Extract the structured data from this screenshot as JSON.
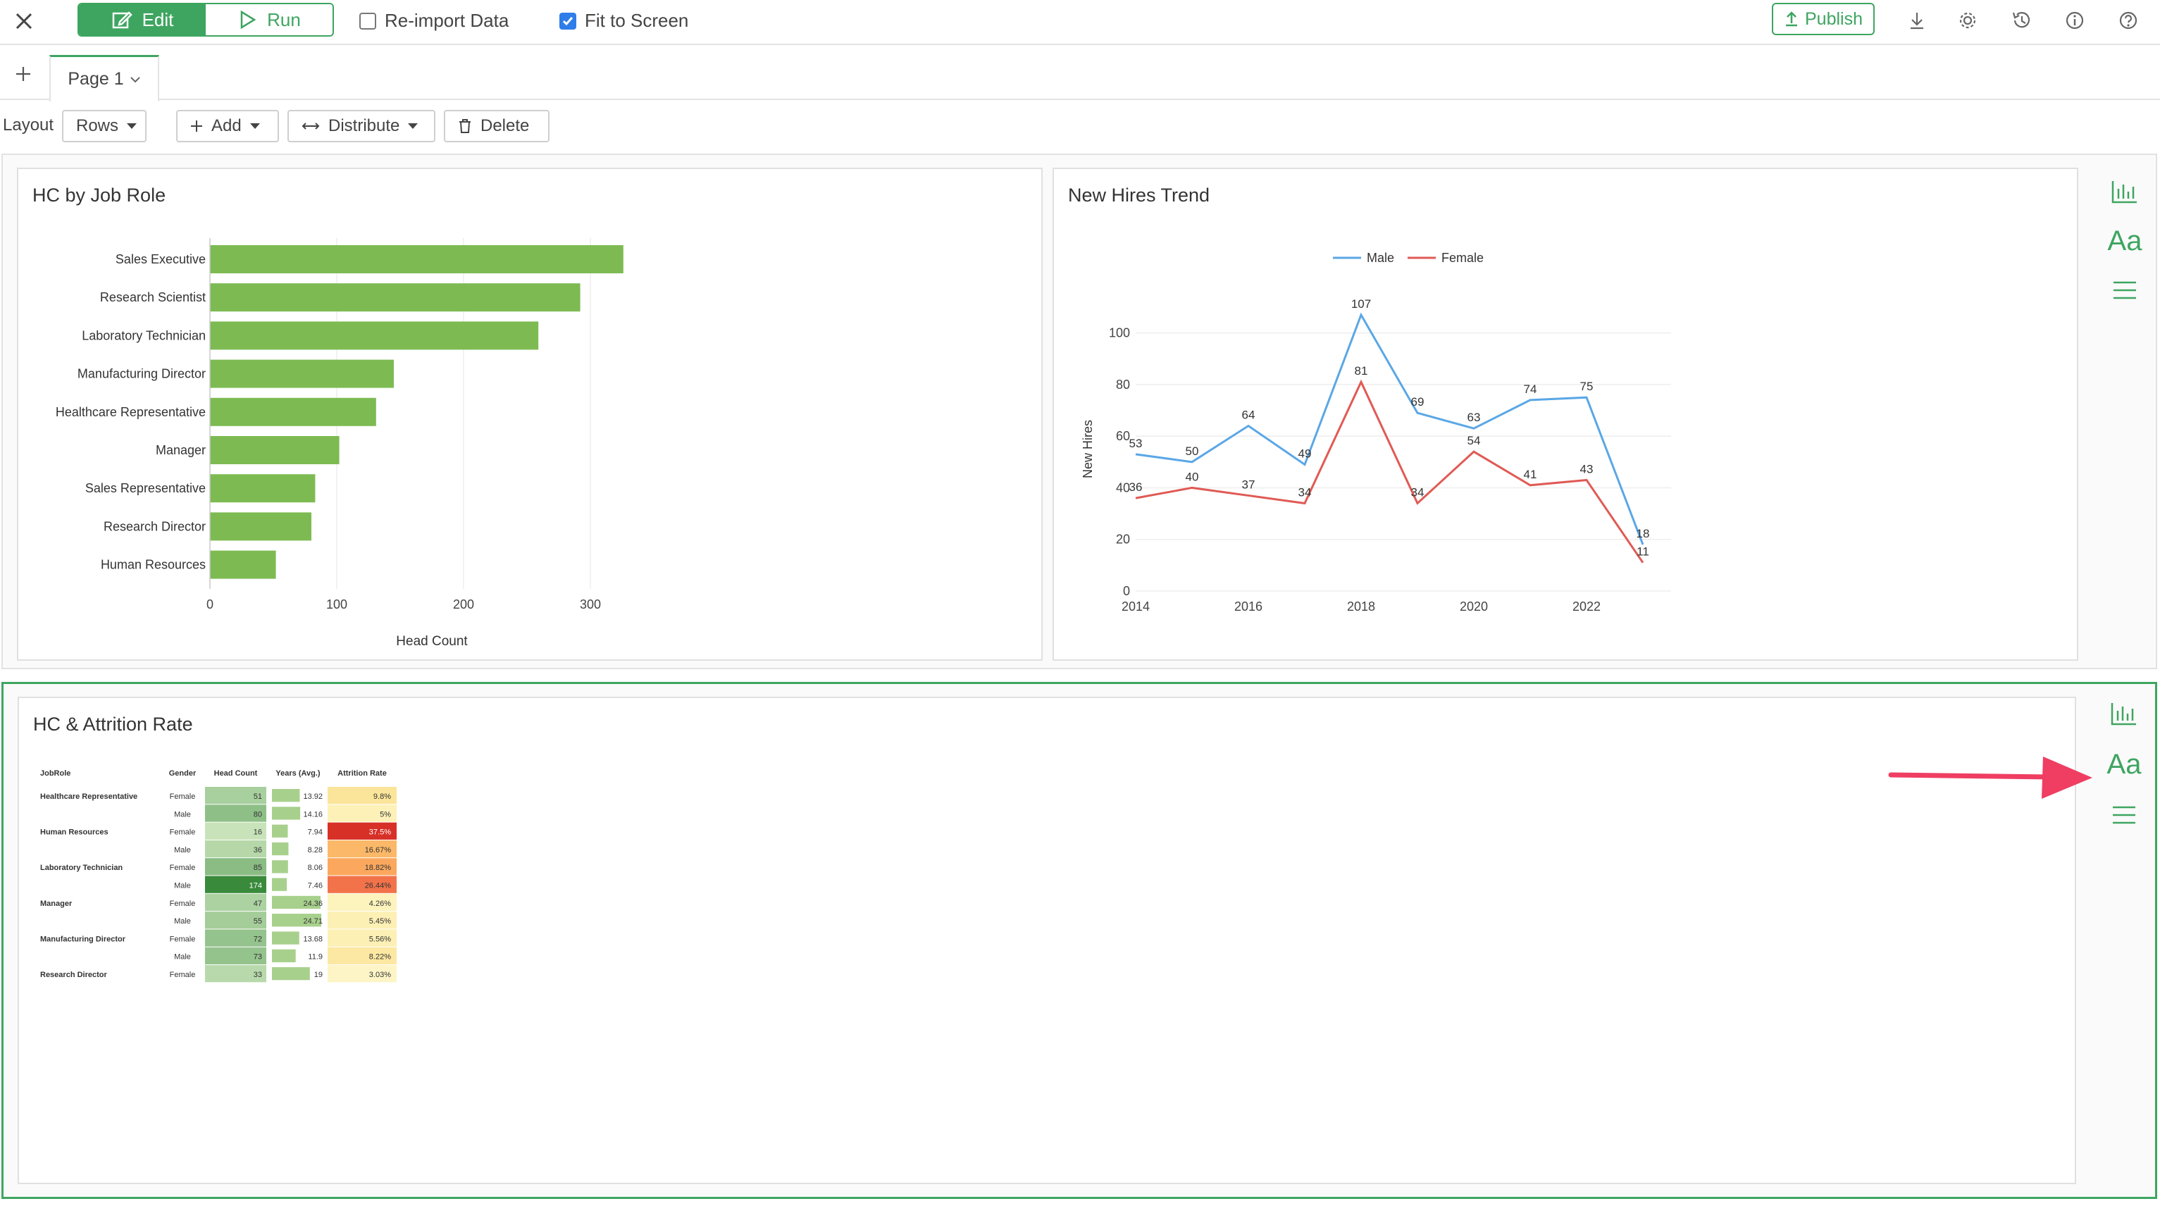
{
  "toolbar": {
    "edit_label": "Edit",
    "run_label": "Run",
    "reimport_label": "Re-import Data",
    "reimport_checked": false,
    "fit_label": "Fit to Screen",
    "fit_checked": true,
    "publish_label": "Publish"
  },
  "tabs": [
    {
      "label": "Page 1"
    }
  ],
  "layoutbar": {
    "label": "Layout",
    "rows_label": "Rows",
    "add_label": "Add",
    "distribute_label": "Distribute",
    "delete_label": "Delete"
  },
  "colors": {
    "accent": "#3ea560",
    "male": "#5aa7e6",
    "female": "#e05a55",
    "bar": "#7dbb52",
    "arrow": "#ef3e62"
  },
  "panels": {
    "hc_by_job_role": {
      "title": "HC by Job Role",
      "chart_data": {
        "type": "bar",
        "orientation": "horizontal",
        "categories": [
          "Sales Executive",
          "Research Scientist",
          "Laboratory Technician",
          "Manufacturing Director",
          "Healthcare Representative",
          "Manager",
          "Sales Representative",
          "Research Director",
          "Human Resources"
        ],
        "values": [
          326,
          292,
          259,
          145,
          131,
          102,
          83,
          80,
          52
        ],
        "xlabel": "Head Count",
        "xticks": [
          0,
          100,
          200,
          300
        ],
        "xlim": [
          0,
          350
        ],
        "grid": true
      }
    },
    "new_hires_trend": {
      "title": "New Hires Trend",
      "chart_data": {
        "type": "line",
        "x": [
          2014,
          2015,
          2016,
          2017,
          2018,
          2019,
          2020,
          2021,
          2022,
          2023
        ],
        "xticks": [
          2014,
          2016,
          2018,
          2020,
          2022
        ],
        "series": [
          {
            "name": "Male",
            "values": [
              53,
              50,
              64,
              49,
              107,
              69,
              63,
              74,
              75,
              18
            ]
          },
          {
            "name": "Female",
            "values": [
              36,
              40,
              37,
              34,
              81,
              34,
              54,
              41,
              43,
              11
            ]
          }
        ],
        "ylabel": "New Hires",
        "yticks": [
          0,
          20,
          40,
          60,
          80,
          100
        ],
        "ylim": [
          0,
          110
        ],
        "legend": "top-center",
        "grid": true
      }
    },
    "hc_attrition": {
      "title": "HC & Attrition Rate",
      "chart_data": {
        "type": "table",
        "columns": [
          "JobRole",
          "Gender",
          "Head Count",
          "Years (Avg.)",
          "Attrition Rate"
        ],
        "rows": [
          {
            "role": "Healthcare Representative",
            "gender": "Female",
            "hc": 51,
            "years": "13.92",
            "rate": "9.8%",
            "rate_color": "#fbe59a"
          },
          {
            "role": "",
            "gender": "Male",
            "hc": 80,
            "years": "14.16",
            "rate": "5%",
            "rate_color": "#fdf1b8"
          },
          {
            "role": "Human Resources",
            "gender": "Female",
            "hc": 16,
            "years": "7.94",
            "rate": "37.5%",
            "rate_color": "#d73027"
          },
          {
            "role": "",
            "gender": "Male",
            "hc": 36,
            "years": "8.28",
            "rate": "16.67%",
            "rate_color": "#fbb868"
          },
          {
            "role": "Laboratory Technician",
            "gender": "Female",
            "hc": 85,
            "years": "8.06",
            "rate": "18.82%",
            "rate_color": "#fba85e"
          },
          {
            "role": "",
            "gender": "Male",
            "hc": 174,
            "years": "7.46",
            "rate": "26.44%",
            "rate_color": "#f2734a"
          },
          {
            "role": "Manager",
            "gender": "Female",
            "hc": 47,
            "years": "24.36",
            "rate": "4.26%",
            "rate_color": "#fdf3bd"
          },
          {
            "role": "",
            "gender": "Male",
            "hc": 55,
            "years": "24.71",
            "rate": "5.45%",
            "rate_color": "#fdf0b5"
          },
          {
            "role": "Manufacturing Director",
            "gender": "Female",
            "hc": 72,
            "years": "13.68",
            "rate": "5.56%",
            "rate_color": "#fdf0b5"
          },
          {
            "role": "",
            "gender": "Male",
            "hc": 73,
            "years": "11.9",
            "rate": "8.22%",
            "rate_color": "#fce8a2"
          },
          {
            "role": "Research Director",
            "gender": "Female",
            "hc": 33,
            "years": "19",
            "rate": "3.03%",
            "rate_color": "#fdf5c6"
          }
        ]
      }
    }
  }
}
